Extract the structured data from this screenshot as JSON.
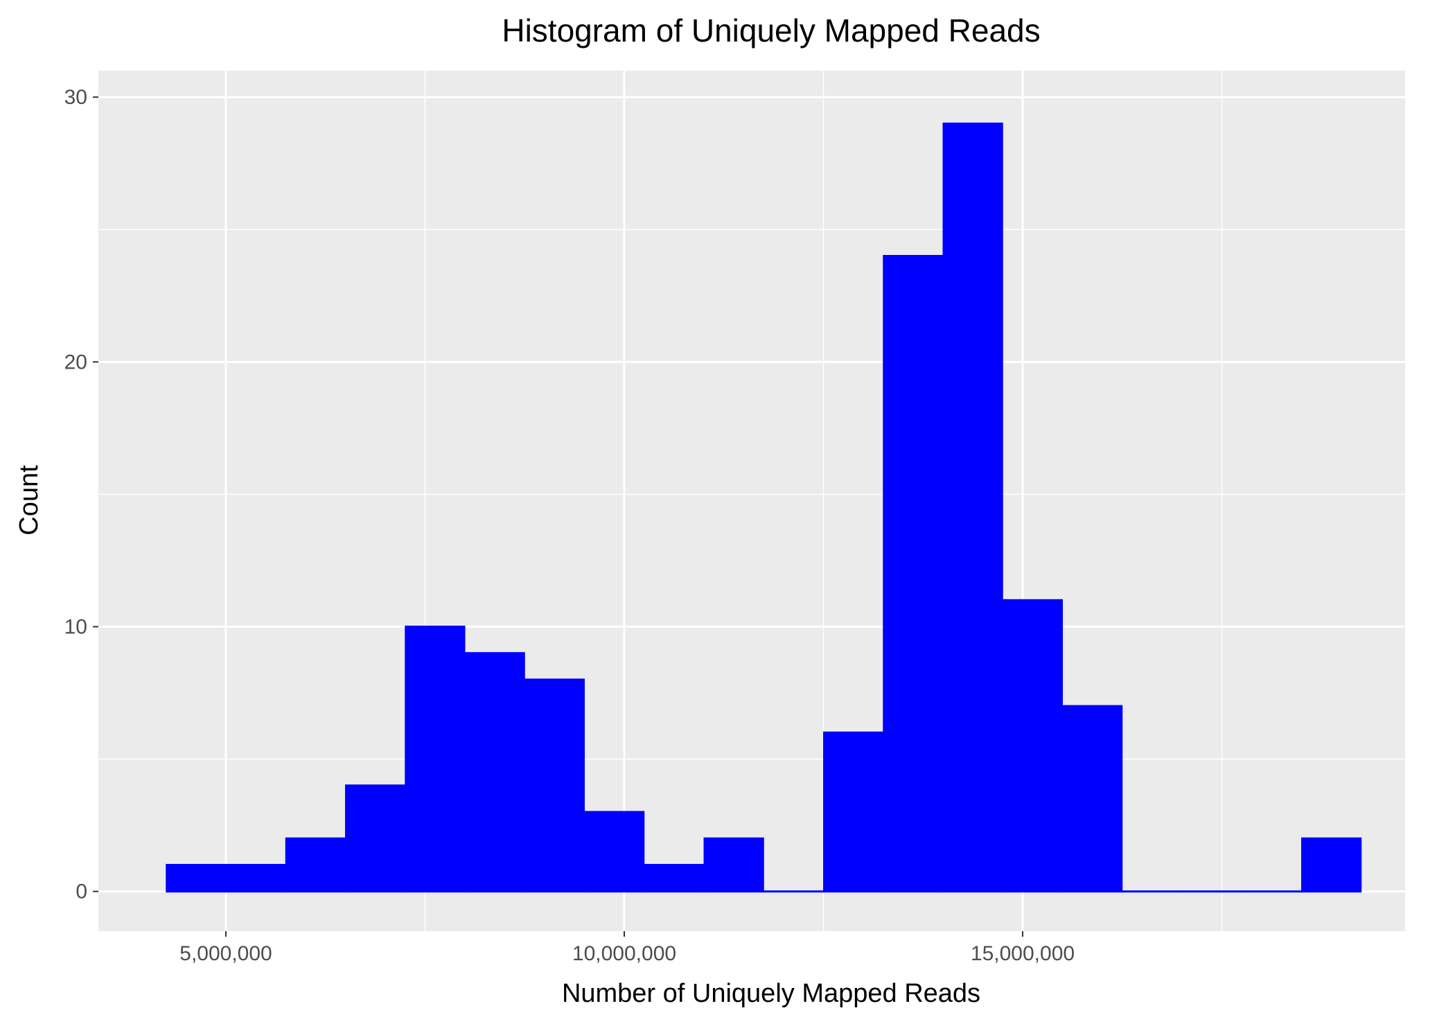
{
  "chart_data": {
    "type": "bar",
    "title": "Histogram of Uniquely Mapped Reads",
    "xlabel": "Number of Uniquely Mapped Reads",
    "ylabel": "Count",
    "grid": true,
    "legend": "none",
    "colors": {
      "bar": "#0000ff",
      "panel": "#ebebeb",
      "grid": "#ffffff"
    },
    "xlim": [
      3400000,
      19800000
    ],
    "ylim": [
      -1.5,
      31
    ],
    "bin_width": 750000,
    "bins": [
      {
        "start": 4250000,
        "end": 5000000,
        "count": 1
      },
      {
        "start": 5000000,
        "end": 5750000,
        "count": 1
      },
      {
        "start": 5750000,
        "end": 6500000,
        "count": 2
      },
      {
        "start": 6500000,
        "end": 7250000,
        "count": 4
      },
      {
        "start": 7250000,
        "end": 8000000,
        "count": 10
      },
      {
        "start": 8000000,
        "end": 8750000,
        "count": 9
      },
      {
        "start": 8750000,
        "end": 9500000,
        "count": 8
      },
      {
        "start": 9500000,
        "end": 10250000,
        "count": 3
      },
      {
        "start": 10250000,
        "end": 11000000,
        "count": 1
      },
      {
        "start": 11000000,
        "end": 11750000,
        "count": 2
      },
      {
        "start": 11750000,
        "end": 12500000,
        "count": 0
      },
      {
        "start": 12500000,
        "end": 13250000,
        "count": 6
      },
      {
        "start": 13250000,
        "end": 14000000,
        "count": 24
      },
      {
        "start": 14000000,
        "end": 14750000,
        "count": 29
      },
      {
        "start": 14750000,
        "end": 15500000,
        "count": 11
      },
      {
        "start": 15500000,
        "end": 16250000,
        "count": 7
      },
      {
        "start": 16250000,
        "end": 17000000,
        "count": 0
      },
      {
        "start": 17000000,
        "end": 17750000,
        "count": 0
      },
      {
        "start": 17750000,
        "end": 18500000,
        "count": 0
      },
      {
        "start": 18500000,
        "end": 19250000,
        "count": 2
      }
    ],
    "x_ticks": [
      {
        "value": 5000000,
        "label": "5,000,000"
      },
      {
        "value": 10000000,
        "label": "10,000,000"
      },
      {
        "value": 15000000,
        "label": "15,000,000"
      }
    ],
    "x_minor_ticks": [
      7500000,
      12500000,
      17500000
    ],
    "y_ticks": [
      {
        "value": 0,
        "label": "0"
      },
      {
        "value": 10,
        "label": "10"
      },
      {
        "value": 20,
        "label": "20"
      },
      {
        "value": 30,
        "label": "30"
      }
    ],
    "y_minor_ticks": [
      5,
      15,
      25
    ]
  }
}
